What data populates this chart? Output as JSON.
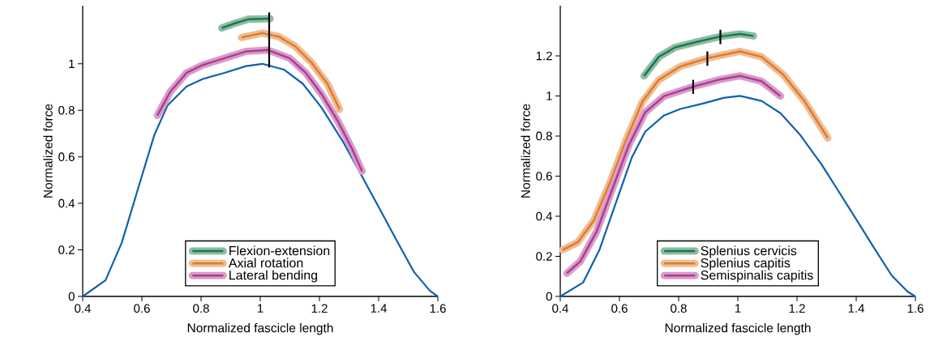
{
  "chart_data": [
    {
      "type": "line",
      "xlabel": "Normalized fascicle length",
      "ylabel": "Normalized force",
      "xlim": [
        0.4,
        1.6
      ],
      "ylim": [
        0,
        1.25
      ],
      "xticks": [
        0.4,
        0.6,
        0.8,
        1,
        1.2,
        1.4,
        1.6
      ],
      "yticks": [
        0,
        0.2,
        0.4,
        0.6,
        0.8,
        1
      ],
      "legend": "bottom",
      "grid": false,
      "series": [
        {
          "color": "#1060b0",
          "x": [
            0.4,
            0.477,
            0.532,
            0.587,
            0.642,
            0.687,
            0.751,
            0.806,
            0.879,
            0.952,
            1.007,
            1.08,
            1.144,
            1.208,
            1.282,
            1.337,
            1.401,
            1.465,
            1.52,
            1.574,
            1.6
          ],
          "values": [
            0,
            0.069,
            0.231,
            0.463,
            0.694,
            0.822,
            0.903,
            0.935,
            0.961,
            0.99,
            1.0,
            0.975,
            0.914,
            0.81,
            0.66,
            0.532,
            0.382,
            0.231,
            0.104,
            0.023,
            0
          ]
        },
        {
          "name": "Flexion-extension",
          "color": "#1a7a4a",
          "x": [
            0.87,
            0.916,
            0.961,
            1.033
          ],
          "values": [
            1.154,
            1.175,
            1.192,
            1.194
          ]
        },
        {
          "name": "Axial rotation",
          "color": "#e07b2a",
          "x": [
            0.936,
            1.007,
            1.062,
            1.117,
            1.172,
            1.227,
            1.268
          ],
          "values": [
            1.113,
            1.132,
            1.117,
            1.076,
            1.007,
            0.914,
            0.804
          ]
        },
        {
          "name": "Lateral bending",
          "color": "#b03a94",
          "x": [
            0.652,
            0.696,
            0.751,
            0.806,
            0.879,
            0.952,
            1.026,
            1.099,
            1.154,
            1.208,
            1.263,
            1.309,
            1.344
          ],
          "values": [
            0.778,
            0.88,
            0.961,
            0.995,
            1.024,
            1.053,
            1.059,
            1.024,
            0.961,
            0.868,
            0.752,
            0.637,
            0.538
          ]
        },
        {
          "color": "#000000",
          "x": [
            1.03,
            1.03
          ],
          "values": [
            0.984,
            1.221
          ]
        }
      ]
    },
    {
      "type": "line",
      "xlabel": "Normalized fascicle length",
      "ylabel": "Normalized force",
      "xlim": [
        0.4,
        1.6
      ],
      "ylim": [
        0,
        1.45
      ],
      "xticks": [
        0.4,
        0.6,
        0.8,
        1,
        1.2,
        1.4,
        1.6
      ],
      "yticks": [
        0,
        0.2,
        0.4,
        0.6,
        0.8,
        1,
        1.2
      ],
      "legend": "bottom",
      "grid": false,
      "series": [
        {
          "color": "#1060b0",
          "x": [
            0.4,
            0.477,
            0.532,
            0.587,
            0.642,
            0.687,
            0.751,
            0.806,
            0.879,
            0.952,
            1.007,
            1.08,
            1.144,
            1.208,
            1.282,
            1.337,
            1.401,
            1.465,
            1.52,
            1.574,
            1.6
          ],
          "values": [
            0,
            0.069,
            0.231,
            0.463,
            0.694,
            0.822,
            0.903,
            0.935,
            0.961,
            0.99,
            1.0,
            0.975,
            0.914,
            0.81,
            0.66,
            0.532,
            0.382,
            0.231,
            0.104,
            0.023,
            0
          ]
        },
        {
          "name": "Splenius cervicis",
          "color": "#1a7a4a",
          "x": [
            0.683,
            0.733,
            0.788,
            0.861,
            0.941,
            1.007,
            1.053
          ],
          "values": [
            1.1,
            1.195,
            1.242,
            1.269,
            1.296,
            1.309,
            1.299
          ]
        },
        {
          "name": "Splenius capitis",
          "color": "#e07b2a",
          "x": [
            0.408,
            0.459,
            0.513,
            0.568,
            0.623,
            0.678,
            0.733,
            0.806,
            0.897,
            1.007,
            1.08,
            1.153,
            1.226,
            1.304
          ],
          "values": [
            0.232,
            0.27,
            0.378,
            0.567,
            0.783,
            0.972,
            1.08,
            1.147,
            1.188,
            1.222,
            1.195,
            1.107,
            0.972,
            0.79
          ]
        },
        {
          "name": "Semispinalis capitis",
          "color": "#b03a94",
          "x": [
            0.422,
            0.468,
            0.523,
            0.577,
            0.632,
            0.687,
            0.751,
            0.849,
            0.934,
            1.007,
            1.08,
            1.144
          ],
          "values": [
            0.115,
            0.175,
            0.324,
            0.54,
            0.756,
            0.918,
            0.999,
            1.046,
            1.08,
            1.1,
            1.073,
            0.999
          ]
        },
        {
          "color": "#000000",
          "x": [
            0.941,
            0.941
          ],
          "values": [
            1.258,
            1.33
          ]
        },
        {
          "color": "#000000",
          "x": [
            0.897,
            0.897
          ],
          "values": [
            1.15,
            1.222
          ]
        },
        {
          "color": "#000000",
          "x": [
            0.849,
            0.849
          ],
          "values": [
            1.01,
            1.08
          ]
        }
      ]
    }
  ]
}
